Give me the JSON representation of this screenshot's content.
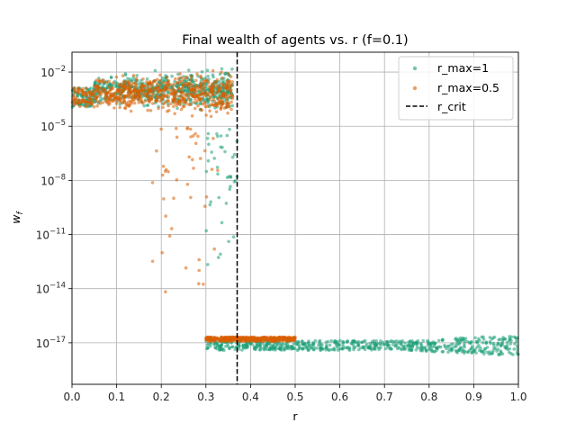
{
  "chart_data": {
    "type": "scatter",
    "title": "Final wealth of agents vs. r (f=0.1)",
    "xlabel": "r",
    "ylabel": "w_f",
    "xlim": [
      0.0,
      1.0
    ],
    "ylim_log10": [
      -19.3,
      -0.9
    ],
    "y_scale": "log",
    "grid": true,
    "legend_position": "top-right",
    "x_ticks": [
      0.0,
      0.1,
      0.2,
      0.3,
      0.4,
      0.5,
      0.6,
      0.7,
      0.8,
      0.9,
      1.0
    ],
    "x_tick_labels": [
      "0.0",
      "0.1",
      "0.2",
      "0.3",
      "0.4",
      "0.5",
      "0.6",
      "0.7",
      "0.8",
      "0.9",
      "1.0"
    ],
    "y_ticks_log10": [
      -17,
      -14,
      -11,
      -8,
      -5,
      -2
    ],
    "y_tick_labels": [
      {
        "base": "10",
        "exp": "−17"
      },
      {
        "base": "10",
        "exp": "−14"
      },
      {
        "base": "10",
        "exp": "−11"
      },
      {
        "base": "10",
        "exp": "−8"
      },
      {
        "base": "10",
        "exp": "−5"
      },
      {
        "base": "10",
        "exp": "−2"
      }
    ],
    "series": [
      {
        "name": "r_max=1",
        "color": "#1b9e77",
        "x_range": [
          0.0,
          1.0
        ],
        "clusters": [
          {
            "x": [
              0.0,
              0.36
            ],
            "log10_w": [
              -4.5,
              -1.5
            ],
            "description": "high wealth region for r below r_crit"
          },
          {
            "x": [
              0.3,
              0.37
            ],
            "log10_w": [
              -13,
              -5
            ],
            "description": "scattered decline near r_crit"
          },
          {
            "x": [
              0.3,
              1.0
            ],
            "log10_w": [
              -17.6,
              -16.7
            ],
            "description": "floor near 1e-17"
          }
        ]
      },
      {
        "name": "r_max=0.5",
        "color": "#d95f02",
        "x_range": [
          0.0,
          0.5
        ],
        "clusters": [
          {
            "x": [
              0.0,
              0.36
            ],
            "log10_w": [
              -4.8,
              -1.5
            ],
            "description": "high wealth region for r below r_crit"
          },
          {
            "x": [
              0.18,
              0.33
            ],
            "log10_w": [
              -14.5,
              -5
            ],
            "description": "scattered decline near r_crit"
          },
          {
            "x": [
              0.3,
              0.5
            ],
            "log10_w": [
              -17.0,
              -16.6
            ],
            "description": "floor near 1e-17"
          }
        ]
      }
    ],
    "reference_lines": [
      {
        "name": "r_crit",
        "x": 0.37,
        "style": "dashed",
        "color": "#000000"
      }
    ]
  }
}
